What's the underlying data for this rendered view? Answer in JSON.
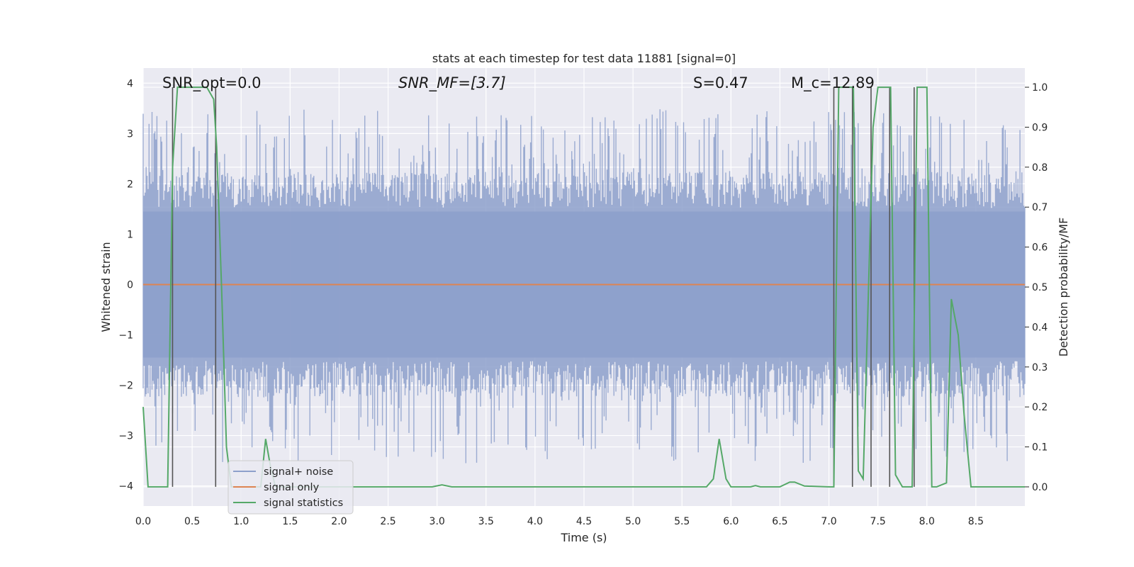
{
  "chart_data": {
    "type": "line",
    "title": "stats at each timestep for test data 11881 [signal=0]",
    "xlabel": "Time (s)",
    "ylabel": "Whitened strain",
    "y2label": "Detection probability/MF",
    "xlim": [
      0.0,
      9.0
    ],
    "ylim": [
      -4.4,
      4.3
    ],
    "y2lim": [
      -0.048,
      1.048
    ],
    "xticks": [
      "0.0",
      "0.5",
      "1.0",
      "1.5",
      "2.0",
      "2.5",
      "3.0",
      "3.5",
      "4.0",
      "4.5",
      "5.0",
      "5.5",
      "6.0",
      "6.5",
      "7.0",
      "7.5",
      "8.0",
      "8.5"
    ],
    "yticks": [
      "4",
      "3",
      "2",
      "1",
      "0",
      "−1",
      "−2",
      "−3",
      "−4"
    ],
    "y2ticks": [
      "1.0",
      "0.9",
      "0.8",
      "0.7",
      "0.6",
      "0.5",
      "0.4",
      "0.3",
      "0.2",
      "0.1",
      "0.0"
    ],
    "grid": true,
    "legend_position": "lower-left",
    "annotations": [
      {
        "text": "SNR_opt=0.0",
        "x": 0.2,
        "y": 4.0
      },
      {
        "text": "SNR_MF=[3.7]",
        "x": 2.6,
        "y": 4.0
      },
      {
        "text": "S=0.47",
        "x": 5.6,
        "y": 4.0
      },
      {
        "text": "M_c=12.89",
        "x": 6.6,
        "y": 4.0
      }
    ],
    "noise_envelope": {
      "typical_amplitude": 1.6,
      "peak_max": 3.5,
      "peak_min": -3.55
    },
    "series": [
      {
        "name": "signal+ noise",
        "color": "#8da0cb",
        "axis": "left",
        "style": "noise"
      },
      {
        "name": "signal only",
        "color": "#dd8452",
        "axis": "left",
        "x": [
          0.0,
          9.0
        ],
        "values": [
          0.0,
          0.0
        ]
      },
      {
        "name": "signal statistics",
        "color": "#55a868",
        "axis": "right",
        "x": [
          0.0,
          0.05,
          0.1,
          0.15,
          0.25,
          0.3,
          0.35,
          0.4,
          0.45,
          0.5,
          0.6,
          0.65,
          0.72,
          0.75,
          0.8,
          0.85,
          0.9,
          1.0,
          1.1,
          1.2,
          1.25,
          1.3,
          1.35,
          1.5,
          2.0,
          2.5,
          2.95,
          3.05,
          3.15,
          3.5,
          4.0,
          4.5,
          5.0,
          5.5,
          5.75,
          5.82,
          5.88,
          5.95,
          6.0,
          6.2,
          6.25,
          6.3,
          6.5,
          6.6,
          6.65,
          6.75,
          7.0,
          7.05,
          7.1,
          7.15,
          7.25,
          7.3,
          7.35,
          7.45,
          7.5,
          7.6,
          7.63,
          7.68,
          7.75,
          7.85,
          7.9,
          7.95,
          8.0,
          8.05,
          8.1,
          8.2,
          8.25,
          8.32,
          8.38,
          8.45,
          8.6,
          8.8,
          9.0
        ],
        "values": [
          0.2,
          0.0,
          0.0,
          0.0,
          0.0,
          0.8,
          1.0,
          1.0,
          1.0,
          1.0,
          1.0,
          1.0,
          0.97,
          0.85,
          0.5,
          0.1,
          0.0,
          0.0,
          0.0,
          0.0,
          0.12,
          0.05,
          0.0,
          0.0,
          0.0,
          0.0,
          0.0,
          0.005,
          0.0,
          0.0,
          0.0,
          0.0,
          0.0,
          0.0,
          0.0,
          0.02,
          0.12,
          0.02,
          0.0,
          0.0,
          0.003,
          0.0,
          0.0,
          0.012,
          0.012,
          0.002,
          0.0,
          0.0,
          1.0,
          1.0,
          1.0,
          0.04,
          0.02,
          0.9,
          1.0,
          1.0,
          1.0,
          0.03,
          0.0,
          0.0,
          1.0,
          1.0,
          1.0,
          0.0,
          0.0,
          0.01,
          0.47,
          0.38,
          0.18,
          0.0,
          0.0,
          0.0,
          0.0
        ]
      },
      {
        "name": "",
        "color": "#555555",
        "axis": "right",
        "style": "vlines",
        "x": [
          0.3,
          0.74,
          7.05,
          7.24,
          7.43,
          7.62,
          7.87
        ],
        "ymin": 0.0,
        "ymax": 1.0
      }
    ]
  }
}
